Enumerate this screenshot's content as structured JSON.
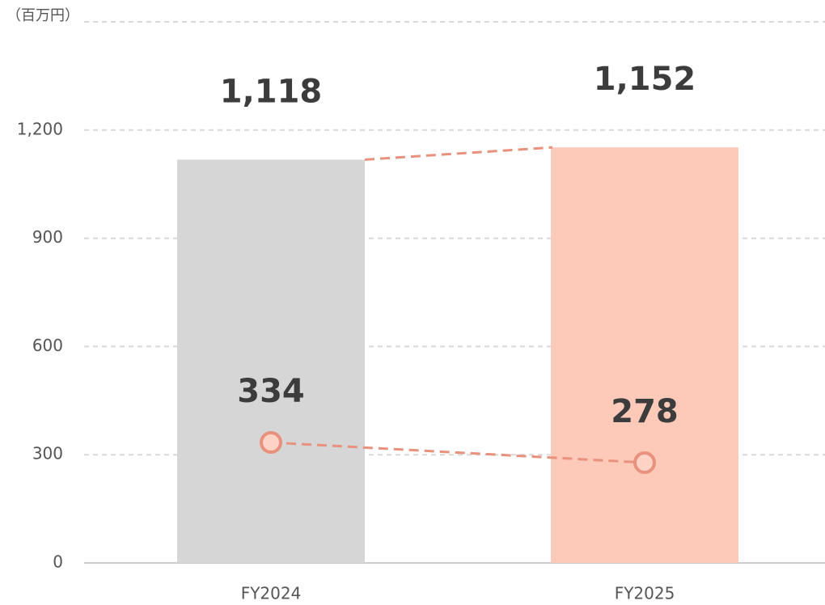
{
  "chart_data": {
    "type": "bar",
    "y_axis_label": "（百万円）",
    "categories": [
      "FY2024",
      "FY2025"
    ],
    "series": [
      {
        "kind": "bar",
        "values": [
          1118,
          1152
        ],
        "value_labels": [
          "1,118",
          "1,152"
        ],
        "colors": [
          "#d6d6d6",
          "#fdc9b8"
        ]
      },
      {
        "kind": "line",
        "values": [
          334,
          278
        ],
        "color": "#e8917d"
      }
    ],
    "ylim": [
      0,
      1500
    ],
    "yticks": [
      0,
      300,
      600,
      900,
      {
        "value": 1200,
        "label": "1,200"
      }
    ],
    "grid": true
  }
}
